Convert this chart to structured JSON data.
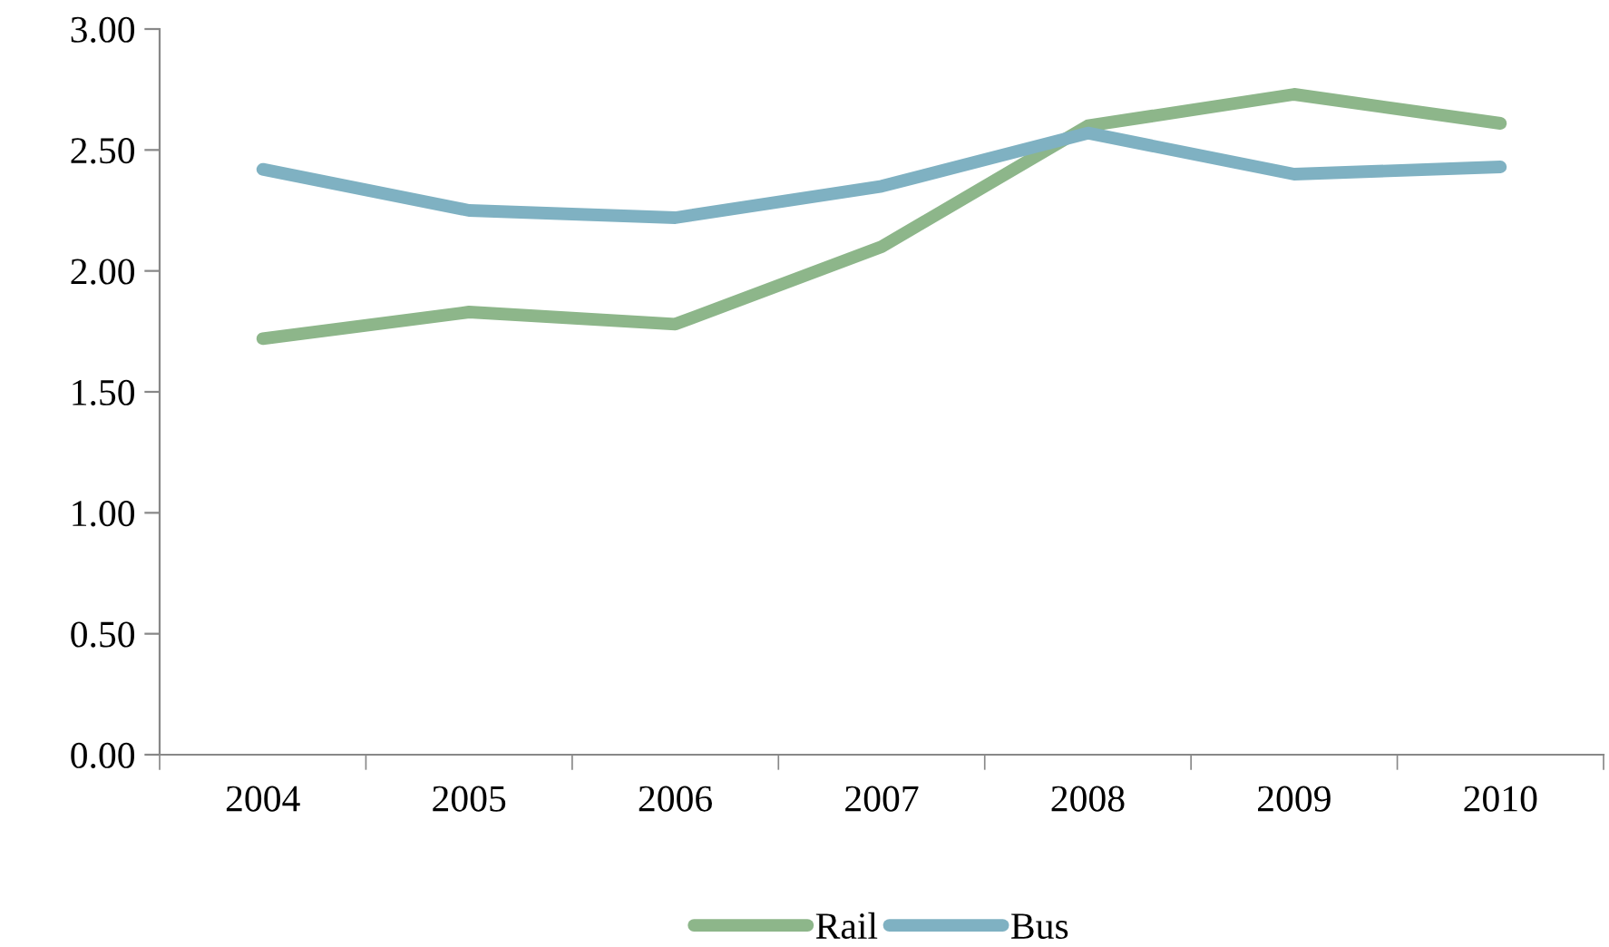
{
  "chart_data": {
    "type": "line",
    "categories": [
      "2004",
      "2005",
      "2006",
      "2007",
      "2008",
      "2009",
      "2010"
    ],
    "series": [
      {
        "name": "Rail",
        "color": "#8db68a",
        "values": [
          1.72,
          1.83,
          1.78,
          2.1,
          2.6,
          2.73,
          2.61
        ]
      },
      {
        "name": "Bus",
        "color": "#7fb1c2",
        "values": [
          2.42,
          2.25,
          2.22,
          2.35,
          2.57,
          2.4,
          2.43
        ]
      }
    ],
    "ylim": [
      0,
      3
    ],
    "yticks": [
      {
        "value": 0,
        "label": "0.00"
      },
      {
        "value": 0.5,
        "label": "0.50"
      },
      {
        "value": 1,
        "label": "1.00"
      },
      {
        "value": 1.5,
        "label": "1.50"
      },
      {
        "value": 2,
        "label": "2.00"
      },
      {
        "value": 2.5,
        "label": "2.50"
      },
      {
        "value": 3,
        "label": "3.00"
      }
    ],
    "grid": false,
    "legend": "bottom",
    "marker": "none",
    "line_style": "solid"
  }
}
